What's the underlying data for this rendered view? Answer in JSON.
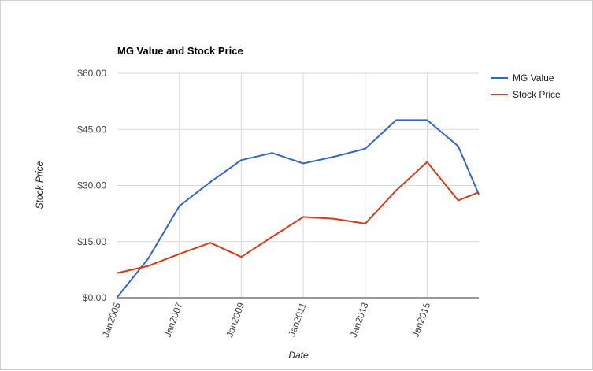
{
  "chart_data": {
    "type": "line",
    "title": "MG Value and Stock Price",
    "xlabel": "Date",
    "ylabel": "Stock Price",
    "y_tick_labels": [
      "$0.00",
      "$15.00",
      "$30.00",
      "$45.00",
      "$60.00"
    ],
    "y_ticks": [
      0,
      15,
      30,
      45,
      60
    ],
    "ylim": [
      0,
      60
    ],
    "x_tick_labels": [
      "Jan2005",
      "Jan2007",
      "Jan2009",
      "Jan2011",
      "Jan2013",
      "Jan2015"
    ],
    "x_ticks": [
      "2005-01",
      "2007-01",
      "2009-01",
      "2011-01",
      "2013-01",
      "2015-01"
    ],
    "xlim": [
      "2005-01",
      "2016-09"
    ],
    "grid": true,
    "legend_position": "right",
    "series": [
      {
        "name": "MG Value",
        "color": "#3366cc",
        "x": [
          "2005-01",
          "2006-01",
          "2007-01",
          "2008-01",
          "2009-01",
          "2010-01",
          "2011-01",
          "2012-01",
          "2013-01",
          "2014-01",
          "2015-01",
          "2016-01",
          "2016-09"
        ],
        "values": [
          0.2,
          10.5,
          24.5,
          30.9,
          36.8,
          38.7,
          35.9,
          37.7,
          39.8,
          47.5,
          47.5,
          40.5,
          27.6
        ]
      },
      {
        "name": "Stock Price",
        "color": "#dc3912",
        "x": [
          "2005-01",
          "2006-01",
          "2007-01",
          "2008-01",
          "2009-01",
          "2010-01",
          "2011-01",
          "2012-01",
          "2013-01",
          "2014-01",
          "2015-01",
          "2016-01",
          "2016-09"
        ],
        "values": [
          6.6,
          8.5,
          11.7,
          14.7,
          10.9,
          16.3,
          21.6,
          21.1,
          19.8,
          28.7,
          36.3,
          26.0,
          28.2
        ]
      }
    ]
  }
}
